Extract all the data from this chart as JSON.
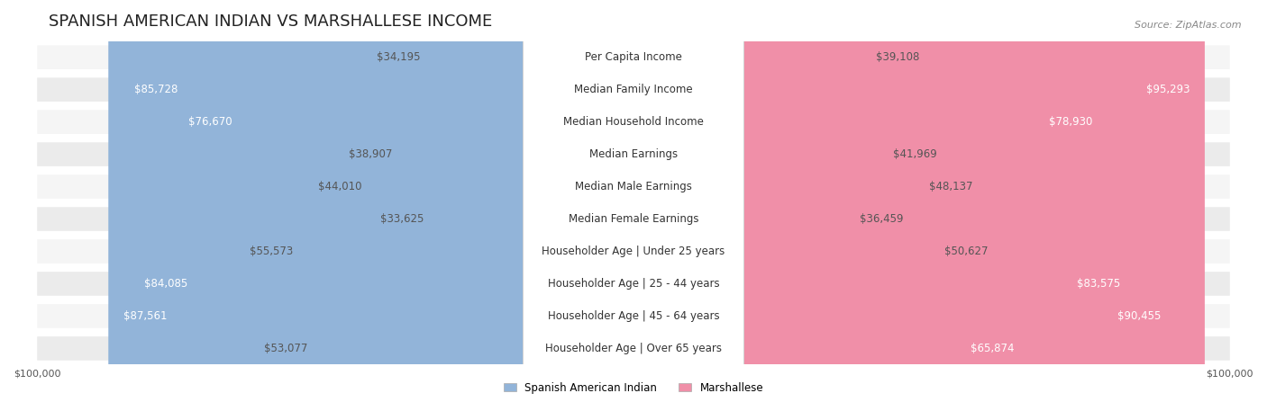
{
  "title": "SPANISH AMERICAN INDIAN VS MARSHALLESE INCOME",
  "source": "Source: ZipAtlas.com",
  "categories": [
    "Per Capita Income",
    "Median Family Income",
    "Median Household Income",
    "Median Earnings",
    "Median Male Earnings",
    "Median Female Earnings",
    "Householder Age | Under 25 years",
    "Householder Age | 25 - 44 years",
    "Householder Age | 45 - 64 years",
    "Householder Age | Over 65 years"
  ],
  "left_values": [
    34195,
    85728,
    76670,
    38907,
    44010,
    33625,
    55573,
    84085,
    87561,
    53077
  ],
  "right_values": [
    39108,
    95293,
    78930,
    41969,
    48137,
    36459,
    50627,
    83575,
    90455,
    65874
  ],
  "left_labels": [
    "$34,195",
    "$85,728",
    "$76,670",
    "$38,907",
    "$44,010",
    "$33,625",
    "$55,573",
    "$84,085",
    "$87,561",
    "$53,077"
  ],
  "right_labels": [
    "$39,108",
    "$95,293",
    "$78,930",
    "$41,969",
    "$48,137",
    "$36,459",
    "$50,627",
    "$83,575",
    "$90,455",
    "$65,874"
  ],
  "max_value": 100000,
  "left_color": "#92b4d9",
  "right_color": "#f08fa8",
  "left_color_dark": "#5b8fc9",
  "right_color_dark": "#e8607a",
  "bar_bg_color": "#e8e8e8",
  "row_bg_color_odd": "#f5f5f5",
  "row_bg_color_even": "#ebebeb",
  "legend_left": "Spanish American Indian",
  "legend_right": "Marshallese",
  "title_fontsize": 13,
  "label_fontsize": 8.5,
  "category_fontsize": 8.5,
  "axis_label_fontsize": 8,
  "background_color": "#ffffff"
}
